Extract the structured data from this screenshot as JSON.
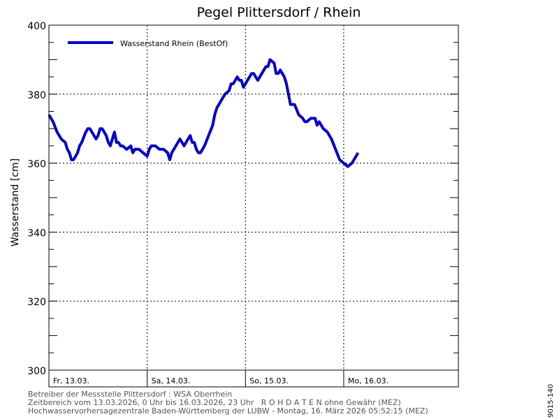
{
  "chart_data": {
    "type": "line",
    "title": "Pegel Plittersdorf / Rhein",
    "xlabel": "",
    "ylabel": "Wasserstand [cm]",
    "ylim": [
      300,
      400
    ],
    "yticks": [
      300,
      320,
      340,
      360,
      380,
      400
    ],
    "xlim": [
      0,
      100
    ],
    "day_labels": [
      {
        "x": 0,
        "label": "Fr, 13.03."
      },
      {
        "x": 24,
        "label": "Sa, 14.03."
      },
      {
        "x": 48,
        "label": "So, 15.03."
      },
      {
        "x": 72,
        "label": "Mo, 16.03."
      }
    ],
    "grid": true,
    "legend_position": "top-left",
    "series": [
      {
        "name": "Wasserstand Rhein (BestOf)",
        "color": "#0000cc",
        "points": [
          [
            0,
            374
          ],
          [
            1,
            372
          ],
          [
            2,
            369
          ],
          [
            3,
            367
          ],
          [
            4,
            366
          ],
          [
            4.5,
            364
          ],
          [
            5,
            363
          ],
          [
            5.5,
            361
          ],
          [
            6,
            361
          ],
          [
            7,
            363
          ],
          [
            7.5,
            365
          ],
          [
            8,
            366
          ],
          [
            9,
            369
          ],
          [
            9.5,
            370
          ],
          [
            10,
            370
          ],
          [
            11,
            368
          ],
          [
            11.5,
            367
          ],
          [
            12,
            368
          ],
          [
            12.5,
            370
          ],
          [
            13,
            370
          ],
          [
            14,
            368
          ],
          [
            14.5,
            366
          ],
          [
            15,
            365
          ],
          [
            15.5,
            367
          ],
          [
            16,
            369
          ],
          [
            16.5,
            366
          ],
          [
            17,
            366
          ],
          [
            17.5,
            365
          ],
          [
            18,
            365
          ],
          [
            19,
            364
          ],
          [
            20,
            365
          ],
          [
            20.5,
            363
          ],
          [
            21,
            364
          ],
          [
            22,
            364
          ],
          [
            23,
            363
          ],
          [
            24,
            362
          ],
          [
            24.5,
            364
          ],
          [
            25,
            365
          ],
          [
            26,
            365
          ],
          [
            27,
            364
          ],
          [
            28,
            364
          ],
          [
            29,
            363
          ],
          [
            29.5,
            361
          ],
          [
            30,
            363
          ],
          [
            31,
            365
          ],
          [
            32,
            367
          ],
          [
            32.5,
            366
          ],
          [
            33,
            365
          ],
          [
            34,
            367
          ],
          [
            34.5,
            368
          ],
          [
            35,
            366
          ],
          [
            35.5,
            366
          ],
          [
            36,
            364
          ],
          [
            36.5,
            363
          ],
          [
            37,
            363
          ],
          [
            37.5,
            364
          ],
          [
            38,
            365
          ],
          [
            39,
            368
          ],
          [
            40,
            371
          ],
          [
            40.5,
            374
          ],
          [
            41,
            376
          ],
          [
            42,
            378
          ],
          [
            43,
            380
          ],
          [
            44,
            381
          ],
          [
            44.5,
            383
          ],
          [
            45,
            383
          ],
          [
            46,
            385
          ],
          [
            46.5,
            384
          ],
          [
            47,
            384
          ],
          [
            47.5,
            382
          ],
          [
            48,
            383
          ],
          [
            49,
            385
          ],
          [
            49.5,
            386
          ],
          [
            50,
            386
          ],
          [
            50.5,
            385
          ],
          [
            51,
            384
          ],
          [
            52,
            386
          ],
          [
            53,
            388
          ],
          [
            53.5,
            388
          ],
          [
            54,
            390
          ],
          [
            55,
            389
          ],
          [
            55.5,
            386
          ],
          [
            56,
            386
          ],
          [
            56.5,
            387
          ],
          [
            57,
            386
          ],
          [
            57.5,
            385
          ],
          [
            58,
            383
          ],
          [
            59,
            377
          ],
          [
            60,
            377
          ],
          [
            61,
            374
          ],
          [
            62,
            373
          ],
          [
            62.5,
            372
          ],
          [
            63,
            372
          ],
          [
            64,
            373
          ],
          [
            65,
            373
          ],
          [
            65.5,
            371
          ],
          [
            66,
            372
          ],
          [
            67,
            370
          ],
          [
            68,
            369
          ],
          [
            69,
            367
          ],
          [
            70,
            364
          ],
          [
            71,
            361
          ],
          [
            72,
            360
          ],
          [
            73,
            359
          ],
          [
            74,
            360
          ],
          [
            74.5,
            361
          ],
          [
            75,
            362
          ],
          [
            75.5,
            363
          ]
        ]
      }
    ]
  },
  "footer": {
    "line1": "Betreiber der Messstelle Plittersdorf : WSA Oberrhein",
    "line2": "Zeitbereich vom 13.03.2026, 0 Uhr bis 16.03.2026, 23 Uhr   R O H D A T E N ohne Gewähr (MEZ)",
    "line3": "Hochwasservorhersagezentrale Baden-Württemberg der LUBW - Montag, 16. März 2026 05:52:15 (MEZ)"
  },
  "side_code": "9015-140"
}
